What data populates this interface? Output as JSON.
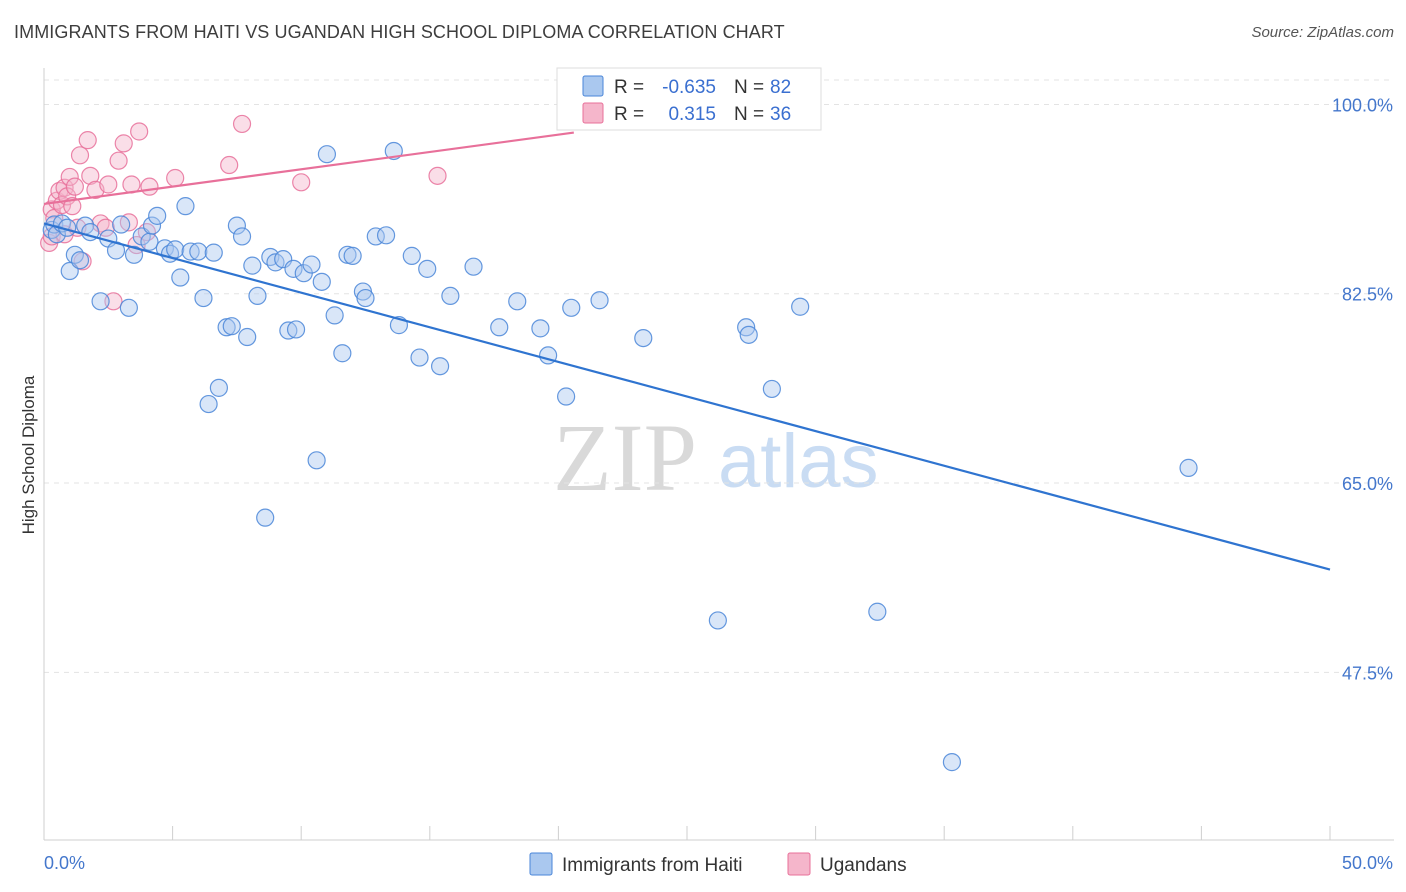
{
  "header": {
    "title": "IMMIGRANTS FROM HAITI VS UGANDAN HIGH SCHOOL DIPLOMA CORRELATION CHART",
    "source": "Source: ZipAtlas.com"
  },
  "colors": {
    "blue": "#4a86d8",
    "blue_fill": "#aac8ef",
    "pink": "#e8709a",
    "pink_fill": "#f5b6cb",
    "axis_label": "#4477cc"
  },
  "legend": {
    "r_label": "R =",
    "n_label": "N =",
    "rows": [
      {
        "r": "-0.635",
        "n": "82",
        "color": "blue"
      },
      {
        "r": "0.315",
        "n": "36",
        "color": "pink"
      }
    ]
  },
  "bottom_legend": [
    {
      "label": "Immigrants from Haiti",
      "color": "blue"
    },
    {
      "label": "Ugandans",
      "color": "pink"
    }
  ],
  "watermark": {
    "zip": "ZIP",
    "atlas": "atlas"
  },
  "chart_data": {
    "type": "scatter",
    "title": "IMMIGRANTS FROM HAITI VS UGANDAN HIGH SCHOOL DIPLOMA CORRELATION CHART",
    "xlabel": "",
    "ylabel": "High School Diploma",
    "xlim": [
      0,
      50
    ],
    "ylim": [
      32,
      103
    ],
    "x_tick_labels": [
      "0.0%",
      "50.0%"
    ],
    "y_ticks": [
      47.5,
      65.0,
      82.5,
      100.0
    ],
    "y_tick_labels": [
      "47.5%",
      "65.0%",
      "82.5%",
      "100.0%"
    ],
    "grid": true,
    "legend_position": "top-center",
    "series": [
      {
        "name": "Immigrants from Haiti",
        "color": "blue",
        "trend": {
          "x": [
            0.0,
            50.0
          ],
          "y": [
            89.0,
            57.0
          ]
        },
        "points": [
          [
            0.3,
            88.4
          ],
          [
            0.4,
            88.9
          ],
          [
            0.5,
            88.0
          ],
          [
            0.7,
            89.0
          ],
          [
            1.0,
            84.6
          ],
          [
            1.2,
            86.1
          ],
          [
            1.4,
            85.6
          ],
          [
            1.6,
            88.8
          ],
          [
            1.8,
            88.2
          ],
          [
            2.2,
            81.8
          ],
          [
            2.5,
            87.6
          ],
          [
            2.8,
            86.5
          ],
          [
            3.0,
            88.9
          ],
          [
            3.3,
            81.2
          ],
          [
            3.5,
            86.1
          ],
          [
            3.8,
            87.8
          ],
          [
            4.1,
            87.3
          ],
          [
            4.2,
            88.8
          ],
          [
            4.4,
            89.7
          ],
          [
            4.7,
            86.7
          ],
          [
            4.9,
            86.2
          ],
          [
            5.1,
            86.6
          ],
          [
            5.3,
            84.0
          ],
          [
            5.5,
            90.6
          ],
          [
            5.7,
            86.4
          ],
          [
            6.0,
            86.4
          ],
          [
            6.2,
            82.1
          ],
          [
            6.4,
            72.3
          ],
          [
            6.6,
            86.3
          ],
          [
            6.8,
            73.8
          ],
          [
            7.1,
            79.4
          ],
          [
            7.3,
            79.5
          ],
          [
            7.5,
            88.8
          ],
          [
            7.7,
            87.8
          ],
          [
            7.9,
            78.5
          ],
          [
            8.1,
            85.1
          ],
          [
            8.3,
            82.3
          ],
          [
            8.6,
            61.8
          ],
          [
            8.8,
            85.9
          ],
          [
            9.0,
            85.4
          ],
          [
            9.3,
            85.7
          ],
          [
            9.5,
            79.1
          ],
          [
            9.7,
            84.8
          ],
          [
            9.8,
            79.2
          ],
          [
            10.1,
            84.4
          ],
          [
            10.4,
            85.2
          ],
          [
            10.6,
            67.1
          ],
          [
            10.8,
            83.6
          ],
          [
            11.0,
            95.4
          ],
          [
            11.3,
            80.5
          ],
          [
            11.6,
            77.0
          ],
          [
            11.8,
            86.1
          ],
          [
            12.0,
            86.0
          ],
          [
            12.4,
            82.7
          ],
          [
            12.5,
            82.1
          ],
          [
            12.9,
            87.8
          ],
          [
            13.3,
            87.9
          ],
          [
            13.6,
            95.7
          ],
          [
            13.8,
            79.6
          ],
          [
            14.3,
            86.0
          ],
          [
            14.6,
            76.6
          ],
          [
            14.9,
            84.8
          ],
          [
            15.4,
            75.8
          ],
          [
            15.8,
            82.3
          ],
          [
            16.7,
            85.0
          ],
          [
            17.7,
            79.4
          ],
          [
            18.4,
            81.8
          ],
          [
            19.3,
            79.3
          ],
          [
            19.6,
            76.8
          ],
          [
            20.3,
            73.0
          ],
          [
            20.5,
            81.2
          ],
          [
            21.6,
            81.9
          ],
          [
            23.3,
            78.4
          ],
          [
            26.2,
            52.3
          ],
          [
            27.3,
            79.4
          ],
          [
            27.4,
            78.7
          ],
          [
            28.3,
            73.7
          ],
          [
            29.4,
            81.3
          ],
          [
            32.4,
            53.1
          ],
          [
            35.3,
            39.2
          ],
          [
            44.5,
            66.4
          ],
          [
            0.9,
            88.6
          ]
        ]
      },
      {
        "name": "Ugandans",
        "color": "pink",
        "trend": {
          "x": [
            0.0,
            20.6
          ],
          "y": [
            90.8,
            97.4
          ]
        },
        "points": [
          [
            0.2,
            87.2
          ],
          [
            0.3,
            87.8
          ],
          [
            0.3,
            90.3
          ],
          [
            0.4,
            89.5
          ],
          [
            0.5,
            91.1
          ],
          [
            0.6,
            92.0
          ],
          [
            0.7,
            90.7
          ],
          [
            0.8,
            92.3
          ],
          [
            0.8,
            88.0
          ],
          [
            0.9,
            91.5
          ],
          [
            1.0,
            93.3
          ],
          [
            1.1,
            90.6
          ],
          [
            1.2,
            92.4
          ],
          [
            1.3,
            88.6
          ],
          [
            1.4,
            95.3
          ],
          [
            1.5,
            85.5
          ],
          [
            1.7,
            96.7
          ],
          [
            1.8,
            93.4
          ],
          [
            2.0,
            92.1
          ],
          [
            2.2,
            89.0
          ],
          [
            2.4,
            88.6
          ],
          [
            2.5,
            92.6
          ],
          [
            2.7,
            81.8
          ],
          [
            2.9,
            94.8
          ],
          [
            3.1,
            96.4
          ],
          [
            3.3,
            89.1
          ],
          [
            3.4,
            92.6
          ],
          [
            3.6,
            87.0
          ],
          [
            3.7,
            97.5
          ],
          [
            4.1,
            92.4
          ],
          [
            5.1,
            93.2
          ],
          [
            7.2,
            94.4
          ],
          [
            7.7,
            98.2
          ],
          [
            10.0,
            92.8
          ],
          [
            15.3,
            93.4
          ],
          [
            4.0,
            88.2
          ]
        ]
      }
    ]
  }
}
